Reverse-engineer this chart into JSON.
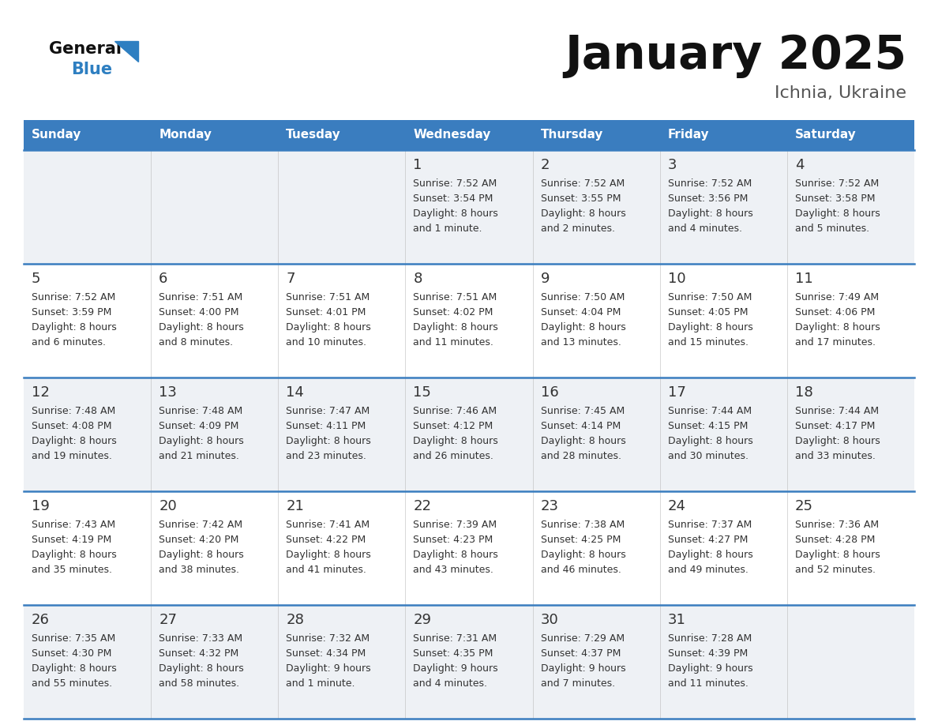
{
  "title": "January 2025",
  "subtitle": "Ichnia, Ukraine",
  "days_of_week": [
    "Sunday",
    "Monday",
    "Tuesday",
    "Wednesday",
    "Thursday",
    "Friday",
    "Saturday"
  ],
  "header_bg": "#3a7dbf",
  "header_text": "#ffffff",
  "row_bg_light": "#eef1f5",
  "row_bg_white": "#ffffff",
  "cell_text_color": "#333333",
  "day_num_color": "#333333",
  "divider_color": "#3a7dbf",
  "title_color": "#111111",
  "subtitle_color": "#555555",
  "logo_general_color": "#111111",
  "logo_blue_color": "#2e7fc1",
  "calendar_data": [
    [
      null,
      null,
      null,
      {
        "day": 1,
        "sunrise": "7:52 AM",
        "sunset": "3:54 PM",
        "daylight": "8 hours",
        "daylight2": "and 1 minute."
      },
      {
        "day": 2,
        "sunrise": "7:52 AM",
        "sunset": "3:55 PM",
        "daylight": "8 hours",
        "daylight2": "and 2 minutes."
      },
      {
        "day": 3,
        "sunrise": "7:52 AM",
        "sunset": "3:56 PM",
        "daylight": "8 hours",
        "daylight2": "and 4 minutes."
      },
      {
        "day": 4,
        "sunrise": "7:52 AM",
        "sunset": "3:58 PM",
        "daylight": "8 hours",
        "daylight2": "and 5 minutes."
      }
    ],
    [
      {
        "day": 5,
        "sunrise": "7:52 AM",
        "sunset": "3:59 PM",
        "daylight": "8 hours",
        "daylight2": "and 6 minutes."
      },
      {
        "day": 6,
        "sunrise": "7:51 AM",
        "sunset": "4:00 PM",
        "daylight": "8 hours",
        "daylight2": "and 8 minutes."
      },
      {
        "day": 7,
        "sunrise": "7:51 AM",
        "sunset": "4:01 PM",
        "daylight": "8 hours",
        "daylight2": "and 10 minutes."
      },
      {
        "day": 8,
        "sunrise": "7:51 AM",
        "sunset": "4:02 PM",
        "daylight": "8 hours",
        "daylight2": "and 11 minutes."
      },
      {
        "day": 9,
        "sunrise": "7:50 AM",
        "sunset": "4:04 PM",
        "daylight": "8 hours",
        "daylight2": "and 13 minutes."
      },
      {
        "day": 10,
        "sunrise": "7:50 AM",
        "sunset": "4:05 PM",
        "daylight": "8 hours",
        "daylight2": "and 15 minutes."
      },
      {
        "day": 11,
        "sunrise": "7:49 AM",
        "sunset": "4:06 PM",
        "daylight": "8 hours",
        "daylight2": "and 17 minutes."
      }
    ],
    [
      {
        "day": 12,
        "sunrise": "7:48 AM",
        "sunset": "4:08 PM",
        "daylight": "8 hours",
        "daylight2": "and 19 minutes."
      },
      {
        "day": 13,
        "sunrise": "7:48 AM",
        "sunset": "4:09 PM",
        "daylight": "8 hours",
        "daylight2": "and 21 minutes."
      },
      {
        "day": 14,
        "sunrise": "7:47 AM",
        "sunset": "4:11 PM",
        "daylight": "8 hours",
        "daylight2": "and 23 minutes."
      },
      {
        "day": 15,
        "sunrise": "7:46 AM",
        "sunset": "4:12 PM",
        "daylight": "8 hours",
        "daylight2": "and 26 minutes."
      },
      {
        "day": 16,
        "sunrise": "7:45 AM",
        "sunset": "4:14 PM",
        "daylight": "8 hours",
        "daylight2": "and 28 minutes."
      },
      {
        "day": 17,
        "sunrise": "7:44 AM",
        "sunset": "4:15 PM",
        "daylight": "8 hours",
        "daylight2": "and 30 minutes."
      },
      {
        "day": 18,
        "sunrise": "7:44 AM",
        "sunset": "4:17 PM",
        "daylight": "8 hours",
        "daylight2": "and 33 minutes."
      }
    ],
    [
      {
        "day": 19,
        "sunrise": "7:43 AM",
        "sunset": "4:19 PM",
        "daylight": "8 hours",
        "daylight2": "and 35 minutes."
      },
      {
        "day": 20,
        "sunrise": "7:42 AM",
        "sunset": "4:20 PM",
        "daylight": "8 hours",
        "daylight2": "and 38 minutes."
      },
      {
        "day": 21,
        "sunrise": "7:41 AM",
        "sunset": "4:22 PM",
        "daylight": "8 hours",
        "daylight2": "and 41 minutes."
      },
      {
        "day": 22,
        "sunrise": "7:39 AM",
        "sunset": "4:23 PM",
        "daylight": "8 hours",
        "daylight2": "and 43 minutes."
      },
      {
        "day": 23,
        "sunrise": "7:38 AM",
        "sunset": "4:25 PM",
        "daylight": "8 hours",
        "daylight2": "and 46 minutes."
      },
      {
        "day": 24,
        "sunrise": "7:37 AM",
        "sunset": "4:27 PM",
        "daylight": "8 hours",
        "daylight2": "and 49 minutes."
      },
      {
        "day": 25,
        "sunrise": "7:36 AM",
        "sunset": "4:28 PM",
        "daylight": "8 hours",
        "daylight2": "and 52 minutes."
      }
    ],
    [
      {
        "day": 26,
        "sunrise": "7:35 AM",
        "sunset": "4:30 PM",
        "daylight": "8 hours",
        "daylight2": "and 55 minutes."
      },
      {
        "day": 27,
        "sunrise": "7:33 AM",
        "sunset": "4:32 PM",
        "daylight": "8 hours",
        "daylight2": "and 58 minutes."
      },
      {
        "day": 28,
        "sunrise": "7:32 AM",
        "sunset": "4:34 PM",
        "daylight": "9 hours",
        "daylight2": "and 1 minute."
      },
      {
        "day": 29,
        "sunrise": "7:31 AM",
        "sunset": "4:35 PM",
        "daylight": "9 hours",
        "daylight2": "and 4 minutes."
      },
      {
        "day": 30,
        "sunrise": "7:29 AM",
        "sunset": "4:37 PM",
        "daylight": "9 hours",
        "daylight2": "and 7 minutes."
      },
      {
        "day": 31,
        "sunrise": "7:28 AM",
        "sunset": "4:39 PM",
        "daylight": "9 hours",
        "daylight2": "and 11 minutes."
      },
      null
    ]
  ]
}
